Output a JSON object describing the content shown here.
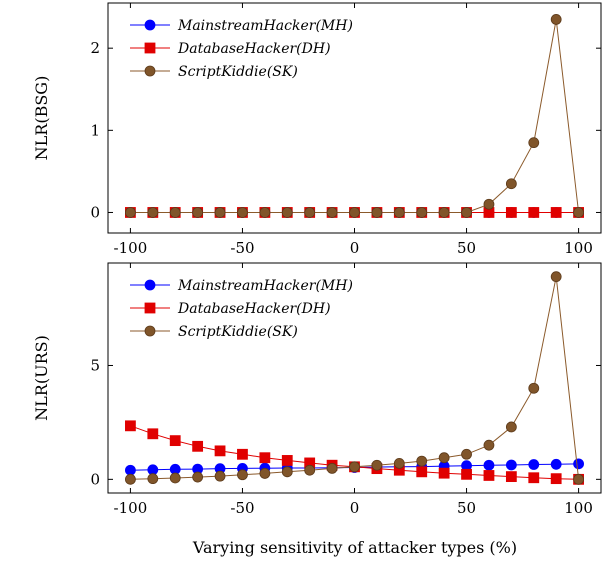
{
  "colors": {
    "mh": "#0000ff",
    "dh": "#e00000",
    "sk": "#8b5a2b",
    "sk_marker": "#80552a"
  },
  "chart_data": [
    {
      "type": "line",
      "ylabel": "NLR(BSG)",
      "xlabel": "",
      "xlim": [
        -110,
        110
      ],
      "ylim": [
        -0.25,
        2.55
      ],
      "xticks": [
        -100,
        -50,
        0,
        50,
        100
      ],
      "yticks": [
        0,
        1,
        2
      ],
      "legend_position": "top-left",
      "grid": false,
      "x": [
        -100,
        -90,
        -80,
        -70,
        -60,
        -50,
        -40,
        -30,
        -20,
        -10,
        0,
        10,
        20,
        30,
        40,
        50,
        60,
        70,
        80,
        90,
        100
      ],
      "series": [
        {
          "name": "MainstreamHacker(MH)",
          "marker": "circle",
          "color": "#0000ff",
          "values": [
            0,
            0,
            0,
            0,
            0,
            0,
            0,
            0,
            0,
            0,
            0,
            0,
            0,
            0,
            0,
            0,
            0,
            0,
            0,
            0,
            0
          ]
        },
        {
          "name": "DatabaseHacker(DH)",
          "marker": "square",
          "color": "#e00000",
          "values": [
            0,
            0,
            0,
            0,
            0,
            0,
            0,
            0,
            0,
            0,
            0,
            0,
            0,
            0,
            0,
            0,
            0,
            0,
            0,
            0,
            0
          ]
        },
        {
          "name": "ScriptKiddie(SK)",
          "marker": "circle",
          "color": "#8b5a2b",
          "values": [
            0,
            0,
            0,
            0,
            0,
            0,
            0,
            0,
            0,
            0,
            0,
            0,
            0,
            0,
            0,
            0,
            0.1,
            0.35,
            0.85,
            2.35,
            0
          ]
        }
      ]
    },
    {
      "type": "line",
      "ylabel": "NLR(URS)",
      "xlabel": "Varying sensitivity of attacker types (%)",
      "xlim": [
        -110,
        110
      ],
      "ylim": [
        -0.6,
        9.5
      ],
      "xticks": [
        -100,
        -50,
        0,
        50,
        100
      ],
      "yticks": [
        0,
        5
      ],
      "legend_position": "top-left",
      "grid": false,
      "x": [
        -100,
        -90,
        -80,
        -70,
        -60,
        -50,
        -40,
        -30,
        -20,
        -10,
        0,
        10,
        20,
        30,
        40,
        50,
        60,
        70,
        80,
        90,
        100
      ],
      "series": [
        {
          "name": "MainstreamHacker(MH)",
          "marker": "circle",
          "color": "#0000ff",
          "values": [
            0.4,
            0.42,
            0.44,
            0.45,
            0.47,
            0.48,
            0.49,
            0.5,
            0.5,
            0.51,
            0.52,
            0.54,
            0.55,
            0.56,
            0.58,
            0.6,
            0.62,
            0.63,
            0.65,
            0.66,
            0.68
          ]
        },
        {
          "name": "DatabaseHacker(DH)",
          "marker": "square",
          "color": "#e00000",
          "values": [
            2.35,
            2.0,
            1.7,
            1.45,
            1.25,
            1.1,
            0.95,
            0.83,
            0.72,
            0.62,
            0.55,
            0.47,
            0.4,
            0.33,
            0.27,
            0.22,
            0.17,
            0.12,
            0.07,
            0.03,
            0.0
          ]
        },
        {
          "name": "ScriptKiddie(SK)",
          "marker": "circle",
          "color": "#8b5a2b",
          "values": [
            0.0,
            0.03,
            0.06,
            0.1,
            0.14,
            0.2,
            0.26,
            0.33,
            0.4,
            0.48,
            0.55,
            0.62,
            0.7,
            0.8,
            0.95,
            1.1,
            1.5,
            2.3,
            4.0,
            8.9,
            0.0
          ]
        }
      ]
    }
  ]
}
